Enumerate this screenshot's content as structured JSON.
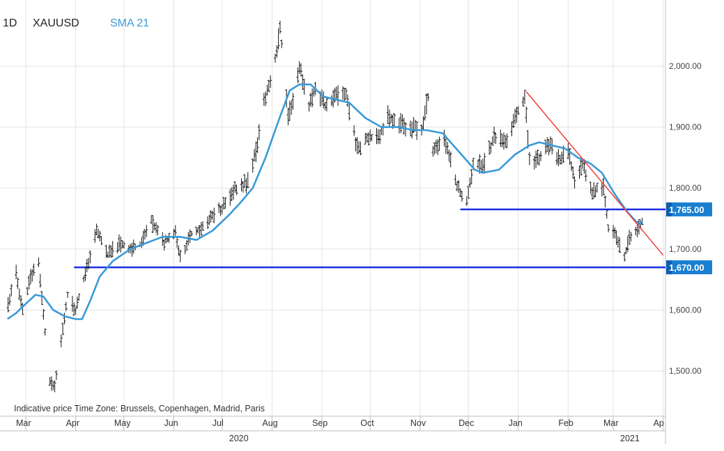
{
  "header": {
    "timeframe": "1D",
    "symbol": "XAUUSD",
    "indicator": "SMA 21",
    "indicator_color": "#3a9ad9"
  },
  "footer": {
    "note": "Indicative price   Time Zone: Brussels, Copenhagen, Madrid, Paris"
  },
  "chart_data": {
    "type": "ohlc-bar",
    "title": "",
    "xlabel": "",
    "ylabel": "",
    "x_range": [
      "2020-02-19",
      "2021-04-02"
    ],
    "ylim": [
      1410,
      2085
    ],
    "y_ticks": [
      {
        "value": 1500,
        "label": "1,500.00"
      },
      {
        "value": 1600,
        "label": "1,600.00"
      },
      {
        "value": 1700,
        "label": "1,700.00"
      },
      {
        "value": 1800,
        "label": "1,800.00"
      },
      {
        "value": 1900,
        "label": "1,900.00"
      },
      {
        "value": 2000,
        "label": "2,000.00"
      }
    ],
    "x_ticks": [
      {
        "date": "2020-03-01",
        "label": "Mar"
      },
      {
        "date": "2020-04-01",
        "label": "Apr"
      },
      {
        "date": "2020-05-01",
        "label": "May"
      },
      {
        "date": "2020-06-01",
        "label": "Jun"
      },
      {
        "date": "2020-07-01",
        "label": "Jul"
      },
      {
        "date": "2020-08-01",
        "label": "Aug"
      },
      {
        "date": "2020-09-01",
        "label": "Sep"
      },
      {
        "date": "2020-10-01",
        "label": "Oct"
      },
      {
        "date": "2020-11-01",
        "label": "Nov"
      },
      {
        "date": "2020-12-01",
        "label": "Dec"
      },
      {
        "date": "2021-01-01",
        "label": "Jan"
      },
      {
        "date": "2021-02-01",
        "label": "Feb"
      },
      {
        "date": "2021-03-01",
        "label": "Mar"
      },
      {
        "date": "2021-04-01",
        "label": "Ap"
      }
    ],
    "year_labels": [
      {
        "date": "2020-07-01",
        "label": "2020"
      },
      {
        "date": "2021-03-01",
        "label": "2021"
      }
    ],
    "grid": true,
    "series": [
      {
        "kind": "price",
        "color": "#111111",
        "points": [
          {
            "x": "2020-02-19",
            "y": 1610
          },
          {
            "x": "2020-02-24",
            "y": 1660
          },
          {
            "x": "2020-02-28",
            "y": 1600
          },
          {
            "x": "2020-03-04",
            "y": 1655
          },
          {
            "x": "2020-03-09",
            "y": 1680
          },
          {
            "x": "2020-03-12",
            "y": 1590
          },
          {
            "x": "2020-03-16",
            "y": 1480
          },
          {
            "x": "2020-03-19",
            "y": 1470
          },
          {
            "x": "2020-03-23",
            "y": 1550
          },
          {
            "x": "2020-03-27",
            "y": 1625
          },
          {
            "x": "2020-04-01",
            "y": 1600
          },
          {
            "x": "2020-04-07",
            "y": 1660
          },
          {
            "x": "2020-04-14",
            "y": 1730
          },
          {
            "x": "2020-04-21",
            "y": 1690
          },
          {
            "x": "2020-04-28",
            "y": 1710
          },
          {
            "x": "2020-05-05",
            "y": 1700
          },
          {
            "x": "2020-05-12",
            "y": 1710
          },
          {
            "x": "2020-05-18",
            "y": 1745
          },
          {
            "x": "2020-05-26",
            "y": 1710
          },
          {
            "x": "2020-06-02",
            "y": 1730
          },
          {
            "x": "2020-06-05",
            "y": 1685
          },
          {
            "x": "2020-06-12",
            "y": 1725
          },
          {
            "x": "2020-06-19",
            "y": 1735
          },
          {
            "x": "2020-06-26",
            "y": 1755
          },
          {
            "x": "2020-07-03",
            "y": 1775
          },
          {
            "x": "2020-07-10",
            "y": 1800
          },
          {
            "x": "2020-07-17",
            "y": 1810
          },
          {
            "x": "2020-07-22",
            "y": 1860
          },
          {
            "x": "2020-07-27",
            "y": 1940
          },
          {
            "x": "2020-07-31",
            "y": 1975
          },
          {
            "x": "2020-08-04",
            "y": 2025
          },
          {
            "x": "2020-08-06",
            "y": 2065
          },
          {
            "x": "2020-08-11",
            "y": 1920
          },
          {
            "x": "2020-08-14",
            "y": 1945
          },
          {
            "x": "2020-08-18",
            "y": 2000
          },
          {
            "x": "2020-08-24",
            "y": 1935
          },
          {
            "x": "2020-08-28",
            "y": 1965
          },
          {
            "x": "2020-09-03",
            "y": 1935
          },
          {
            "x": "2020-09-10",
            "y": 1950
          },
          {
            "x": "2020-09-16",
            "y": 1955
          },
          {
            "x": "2020-09-23",
            "y": 1865
          },
          {
            "x": "2020-09-30",
            "y": 1885
          },
          {
            "x": "2020-10-06",
            "y": 1880
          },
          {
            "x": "2020-10-12",
            "y": 1920
          },
          {
            "x": "2020-10-19",
            "y": 1905
          },
          {
            "x": "2020-10-26",
            "y": 1900
          },
          {
            "x": "2020-11-02",
            "y": 1895
          },
          {
            "x": "2020-11-06",
            "y": 1950
          },
          {
            "x": "2020-11-09",
            "y": 1860
          },
          {
            "x": "2020-11-16",
            "y": 1885
          },
          {
            "x": "2020-11-23",
            "y": 1810
          },
          {
            "x": "2020-11-30",
            "y": 1775
          },
          {
            "x": "2020-12-04",
            "y": 1840
          },
          {
            "x": "2020-12-10",
            "y": 1835
          },
          {
            "x": "2020-12-17",
            "y": 1885
          },
          {
            "x": "2020-12-24",
            "y": 1875
          },
          {
            "x": "2021-01-05",
            "y": 1950
          },
          {
            "x": "2021-01-08",
            "y": 1850
          },
          {
            "x": "2021-01-14",
            "y": 1845
          },
          {
            "x": "2021-01-20",
            "y": 1870
          },
          {
            "x": "2021-01-27",
            "y": 1845
          },
          {
            "x": "2021-02-01",
            "y": 1860
          },
          {
            "x": "2021-02-05",
            "y": 1810
          },
          {
            "x": "2021-02-10",
            "y": 1840
          },
          {
            "x": "2021-02-16",
            "y": 1795
          },
          {
            "x": "2021-02-23",
            "y": 1805
          },
          {
            "x": "2021-02-26",
            "y": 1735
          },
          {
            "x": "2021-03-03",
            "y": 1720
          },
          {
            "x": "2021-03-08",
            "y": 1685
          },
          {
            "x": "2021-03-11",
            "y": 1720
          },
          {
            "x": "2021-03-16",
            "y": 1730
          },
          {
            "x": "2021-03-19",
            "y": 1745
          }
        ]
      },
      {
        "kind": "sma",
        "name": "SMA 21",
        "color": "#3a9ad9",
        "points": [
          {
            "x": "2020-02-19",
            "y": 1586
          },
          {
            "x": "2020-02-24",
            "y": 1595
          },
          {
            "x": "2020-03-01",
            "y": 1610
          },
          {
            "x": "2020-03-07",
            "y": 1625
          },
          {
            "x": "2020-03-12",
            "y": 1622
          },
          {
            "x": "2020-03-18",
            "y": 1600
          },
          {
            "x": "2020-03-25",
            "y": 1590
          },
          {
            "x": "2020-04-01",
            "y": 1585
          },
          {
            "x": "2020-04-05",
            "y": 1585
          },
          {
            "x": "2020-04-10",
            "y": 1615
          },
          {
            "x": "2020-04-16",
            "y": 1655
          },
          {
            "x": "2020-04-24",
            "y": 1680
          },
          {
            "x": "2020-05-05",
            "y": 1700
          },
          {
            "x": "2020-05-15",
            "y": 1710
          },
          {
            "x": "2020-05-25",
            "y": 1720
          },
          {
            "x": "2020-06-05",
            "y": 1720
          },
          {
            "x": "2020-06-15",
            "y": 1715
          },
          {
            "x": "2020-06-25",
            "y": 1730
          },
          {
            "x": "2020-07-05",
            "y": 1755
          },
          {
            "x": "2020-07-12",
            "y": 1775
          },
          {
            "x": "2020-07-20",
            "y": 1800
          },
          {
            "x": "2020-07-28",
            "y": 1850
          },
          {
            "x": "2020-08-05",
            "y": 1910
          },
          {
            "x": "2020-08-12",
            "y": 1960
          },
          {
            "x": "2020-08-18",
            "y": 1970
          },
          {
            "x": "2020-08-25",
            "y": 1970
          },
          {
            "x": "2020-09-02",
            "y": 1950
          },
          {
            "x": "2020-09-10",
            "y": 1945
          },
          {
            "x": "2020-09-18",
            "y": 1940
          },
          {
            "x": "2020-09-28",
            "y": 1915
          },
          {
            "x": "2020-10-08",
            "y": 1900
          },
          {
            "x": "2020-10-18",
            "y": 1900
          },
          {
            "x": "2020-10-28",
            "y": 1895
          },
          {
            "x": "2020-11-05",
            "y": 1895
          },
          {
            "x": "2020-11-15",
            "y": 1890
          },
          {
            "x": "2020-11-25",
            "y": 1860
          },
          {
            "x": "2020-12-05",
            "y": 1830
          },
          {
            "x": "2020-12-10",
            "y": 1825
          },
          {
            "x": "2020-12-20",
            "y": 1830
          },
          {
            "x": "2020-12-30",
            "y": 1855
          },
          {
            "x": "2021-01-08",
            "y": 1870
          },
          {
            "x": "2021-01-14",
            "y": 1875
          },
          {
            "x": "2021-01-22",
            "y": 1870
          },
          {
            "x": "2021-01-30",
            "y": 1865
          },
          {
            "x": "2021-02-07",
            "y": 1850
          },
          {
            "x": "2021-02-15",
            "y": 1840
          },
          {
            "x": "2021-02-22",
            "y": 1825
          },
          {
            "x": "2021-03-02",
            "y": 1790
          },
          {
            "x": "2021-03-10",
            "y": 1760
          },
          {
            "x": "2021-03-17",
            "y": 1740
          },
          {
            "x": "2021-03-19",
            "y": 1745
          }
        ]
      }
    ],
    "levels": [
      {
        "value": 1765,
        "label": "1,765.00",
        "start": "2020-11-26",
        "color": "#1a2ee6"
      },
      {
        "value": 1670,
        "label": "1,670.00",
        "start": "2020-03-31",
        "color": "#1a2ee6"
      }
    ],
    "trendline": {
      "color": "#f03c3c",
      "from": {
        "x": "2021-01-06",
        "y": 1958
      },
      "to": {
        "x": "2021-04-01",
        "y": 1690
      }
    }
  }
}
